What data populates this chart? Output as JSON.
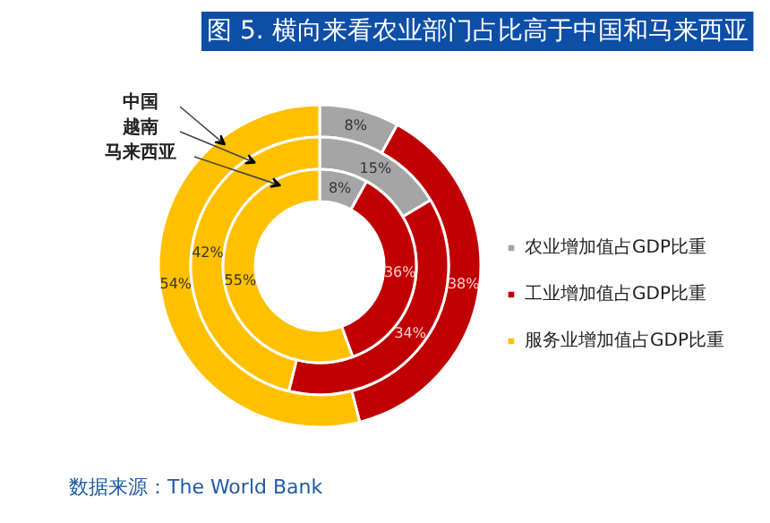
{
  "chart_data": {
    "type": "donut",
    "title": "图 5. 横向来看农业部门占比高于中国和马来西亚",
    "categories": [
      "农业增加值占GDP比重",
      "工业增加值占GDP比重",
      "服务业增加值占GDP比重"
    ],
    "colors": [
      "#a5a5a5",
      "#c00000",
      "#ffc000"
    ],
    "series": [
      {
        "name": "中国",
        "values": [
          8,
          38,
          54
        ],
        "value_labels": [
          "8%",
          "38%",
          "54%"
        ]
      },
      {
        "name": "越南",
        "values": [
          15,
          34,
          42
        ],
        "value_labels": [
          "15%",
          "34%",
          "42%"
        ]
      },
      {
        "name": "马来西亚",
        "values": [
          8,
          36,
          55
        ],
        "value_labels": [
          "8%",
          "36%",
          "55%"
        ]
      }
    ],
    "legend": "right",
    "annotations": [
      "数据来源：The World Bank"
    ]
  }
}
